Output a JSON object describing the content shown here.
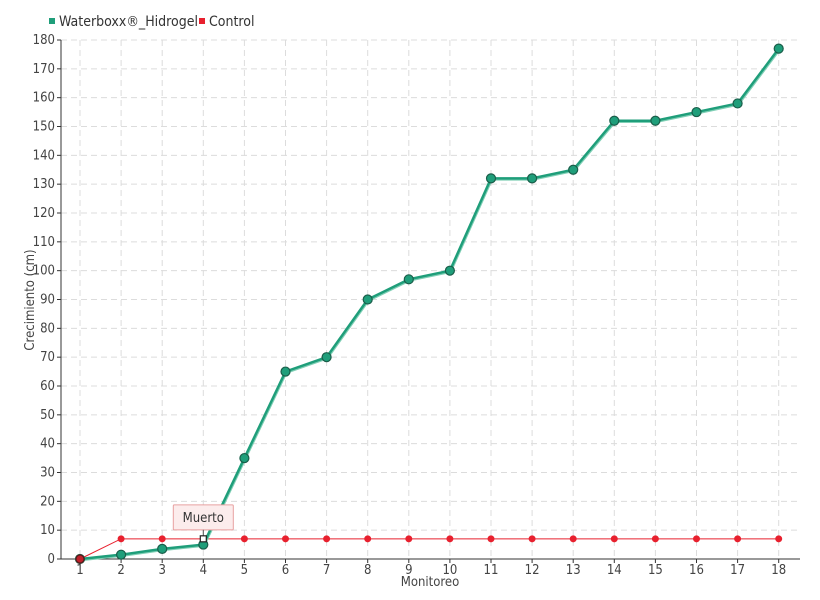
{
  "chart_data": {
    "type": "line",
    "title": "",
    "xlabel": "Monitoreo",
    "ylabel": "Crecimiento (cm)",
    "categories": [
      "1",
      "2",
      "3",
      "4",
      "5",
      "6",
      "7",
      "8",
      "9",
      "10",
      "11",
      "12",
      "13",
      "14",
      "15",
      "16",
      "17",
      "18"
    ],
    "ylim": [
      0,
      180
    ],
    "yticks": [
      0,
      10,
      20,
      30,
      40,
      50,
      60,
      70,
      80,
      90,
      100,
      110,
      120,
      130,
      140,
      150,
      160,
      170,
      180
    ],
    "grid": true,
    "legend_position": "top-left",
    "series": [
      {
        "name": "Waterboxx®_Hidrogel",
        "color": "#1f9e7a",
        "values": [
          0,
          1.5,
          3.5,
          5,
          35,
          65,
          70,
          90,
          97,
          100,
          132,
          132,
          135,
          152,
          152,
          155,
          158,
          177
        ]
      },
      {
        "name": "Control",
        "color": "#e8202e",
        "values": [
          0,
          7,
          7,
          7,
          7,
          7,
          7,
          7,
          7,
          7,
          7,
          7,
          7,
          7,
          7,
          7,
          7,
          7
        ]
      }
    ],
    "annotations": [
      {
        "text": "Muerto",
        "category": "4",
        "value": 7,
        "series": "Control"
      }
    ]
  }
}
